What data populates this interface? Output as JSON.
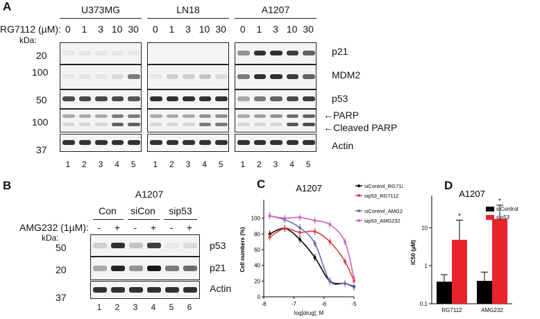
{
  "panelA": {
    "letter": "A",
    "cell_lines": [
      "U373MG",
      "LN18",
      "A1207"
    ],
    "treatment_label": "RG7112 (µM):",
    "doses": [
      "0",
      "1",
      "3",
      "10",
      "30"
    ],
    "kda_label": "kDa:",
    "markers": [
      "20",
      "100",
      "50",
      "100",
      "37"
    ],
    "proteins": [
      "p21",
      "MDM2",
      "p53",
      "←PARP",
      "←Cleaved PARP",
      "Actin"
    ],
    "lanes": [
      "1",
      "2",
      "3",
      "4",
      "5"
    ]
  },
  "panelB": {
    "letter": "B",
    "cell_line": "A1207",
    "groups": [
      "Con",
      "siCon",
      "sip53"
    ],
    "treatment_label": "AMG232 (1µM):",
    "signs": [
      "-",
      "+",
      "-",
      "+",
      "-",
      "+"
    ],
    "kda_label": "kDa:",
    "markers": [
      "50",
      "20",
      "37"
    ],
    "proteins": [
      "p53",
      "p21",
      "Actin"
    ],
    "lanes": [
      "1",
      "2",
      "3",
      "4",
      "5",
      "6"
    ]
  },
  "panelC": {
    "letter": "C",
    "chart_data": {
      "type": "line",
      "title": "A1207",
      "xlabel": "log[drug], M",
      "ylabel": "Cell numbers (%)",
      "xlim": [
        -8,
        -5
      ],
      "ylim": [
        0,
        120
      ],
      "xticks": [
        "-8",
        "-7",
        "-6",
        "-5"
      ],
      "yticks": [
        "0",
        "20",
        "40",
        "60",
        "80",
        "100"
      ],
      "x": [
        -7.8,
        -7.3,
        -6.8,
        -6.3,
        -5.8,
        -5.3,
        -5.0
      ],
      "legend_position": "top-right",
      "series": [
        {
          "name": "siControl_RG7112",
          "color": "#000000",
          "values": [
            80,
            87,
            73,
            50,
            20,
            17,
            13
          ]
        },
        {
          "name": "sip53_RG7112",
          "color": "#e03a3a",
          "values": [
            76,
            87,
            82,
            83,
            70,
            45,
            20
          ]
        },
        {
          "name": "siControl_AMG232",
          "color": "#6868b8",
          "values": [
            103,
            98,
            88,
            68,
            20,
            17,
            12
          ]
        },
        {
          "name": "sip53_AMG232",
          "color": "#d060c0",
          "values": [
            103,
            100,
            101,
            97,
            92,
            70,
            23
          ]
        }
      ]
    }
  },
  "panelD": {
    "letter": "D",
    "chart_data": {
      "type": "bar",
      "title": "A1207",
      "ylabel": "IC50 (µM)",
      "yscale": "log",
      "ylim": [
        0.1,
        50
      ],
      "yticks": [
        "0.1",
        "1",
        "10"
      ],
      "categories": [
        "RG7112",
        "AMG232"
      ],
      "legend_position": "top-right",
      "series": [
        {
          "name": "siControl",
          "color": "#000000",
          "values": [
            0.38,
            0.4
          ],
          "errors": [
            0.2,
            0.28
          ]
        },
        {
          "name": "sip53",
          "color": "#e8232a",
          "values": [
            4.8,
            17
          ],
          "errors": [
            11,
            22
          ]
        }
      ],
      "annotations": [
        "*",
        "*"
      ]
    }
  }
}
